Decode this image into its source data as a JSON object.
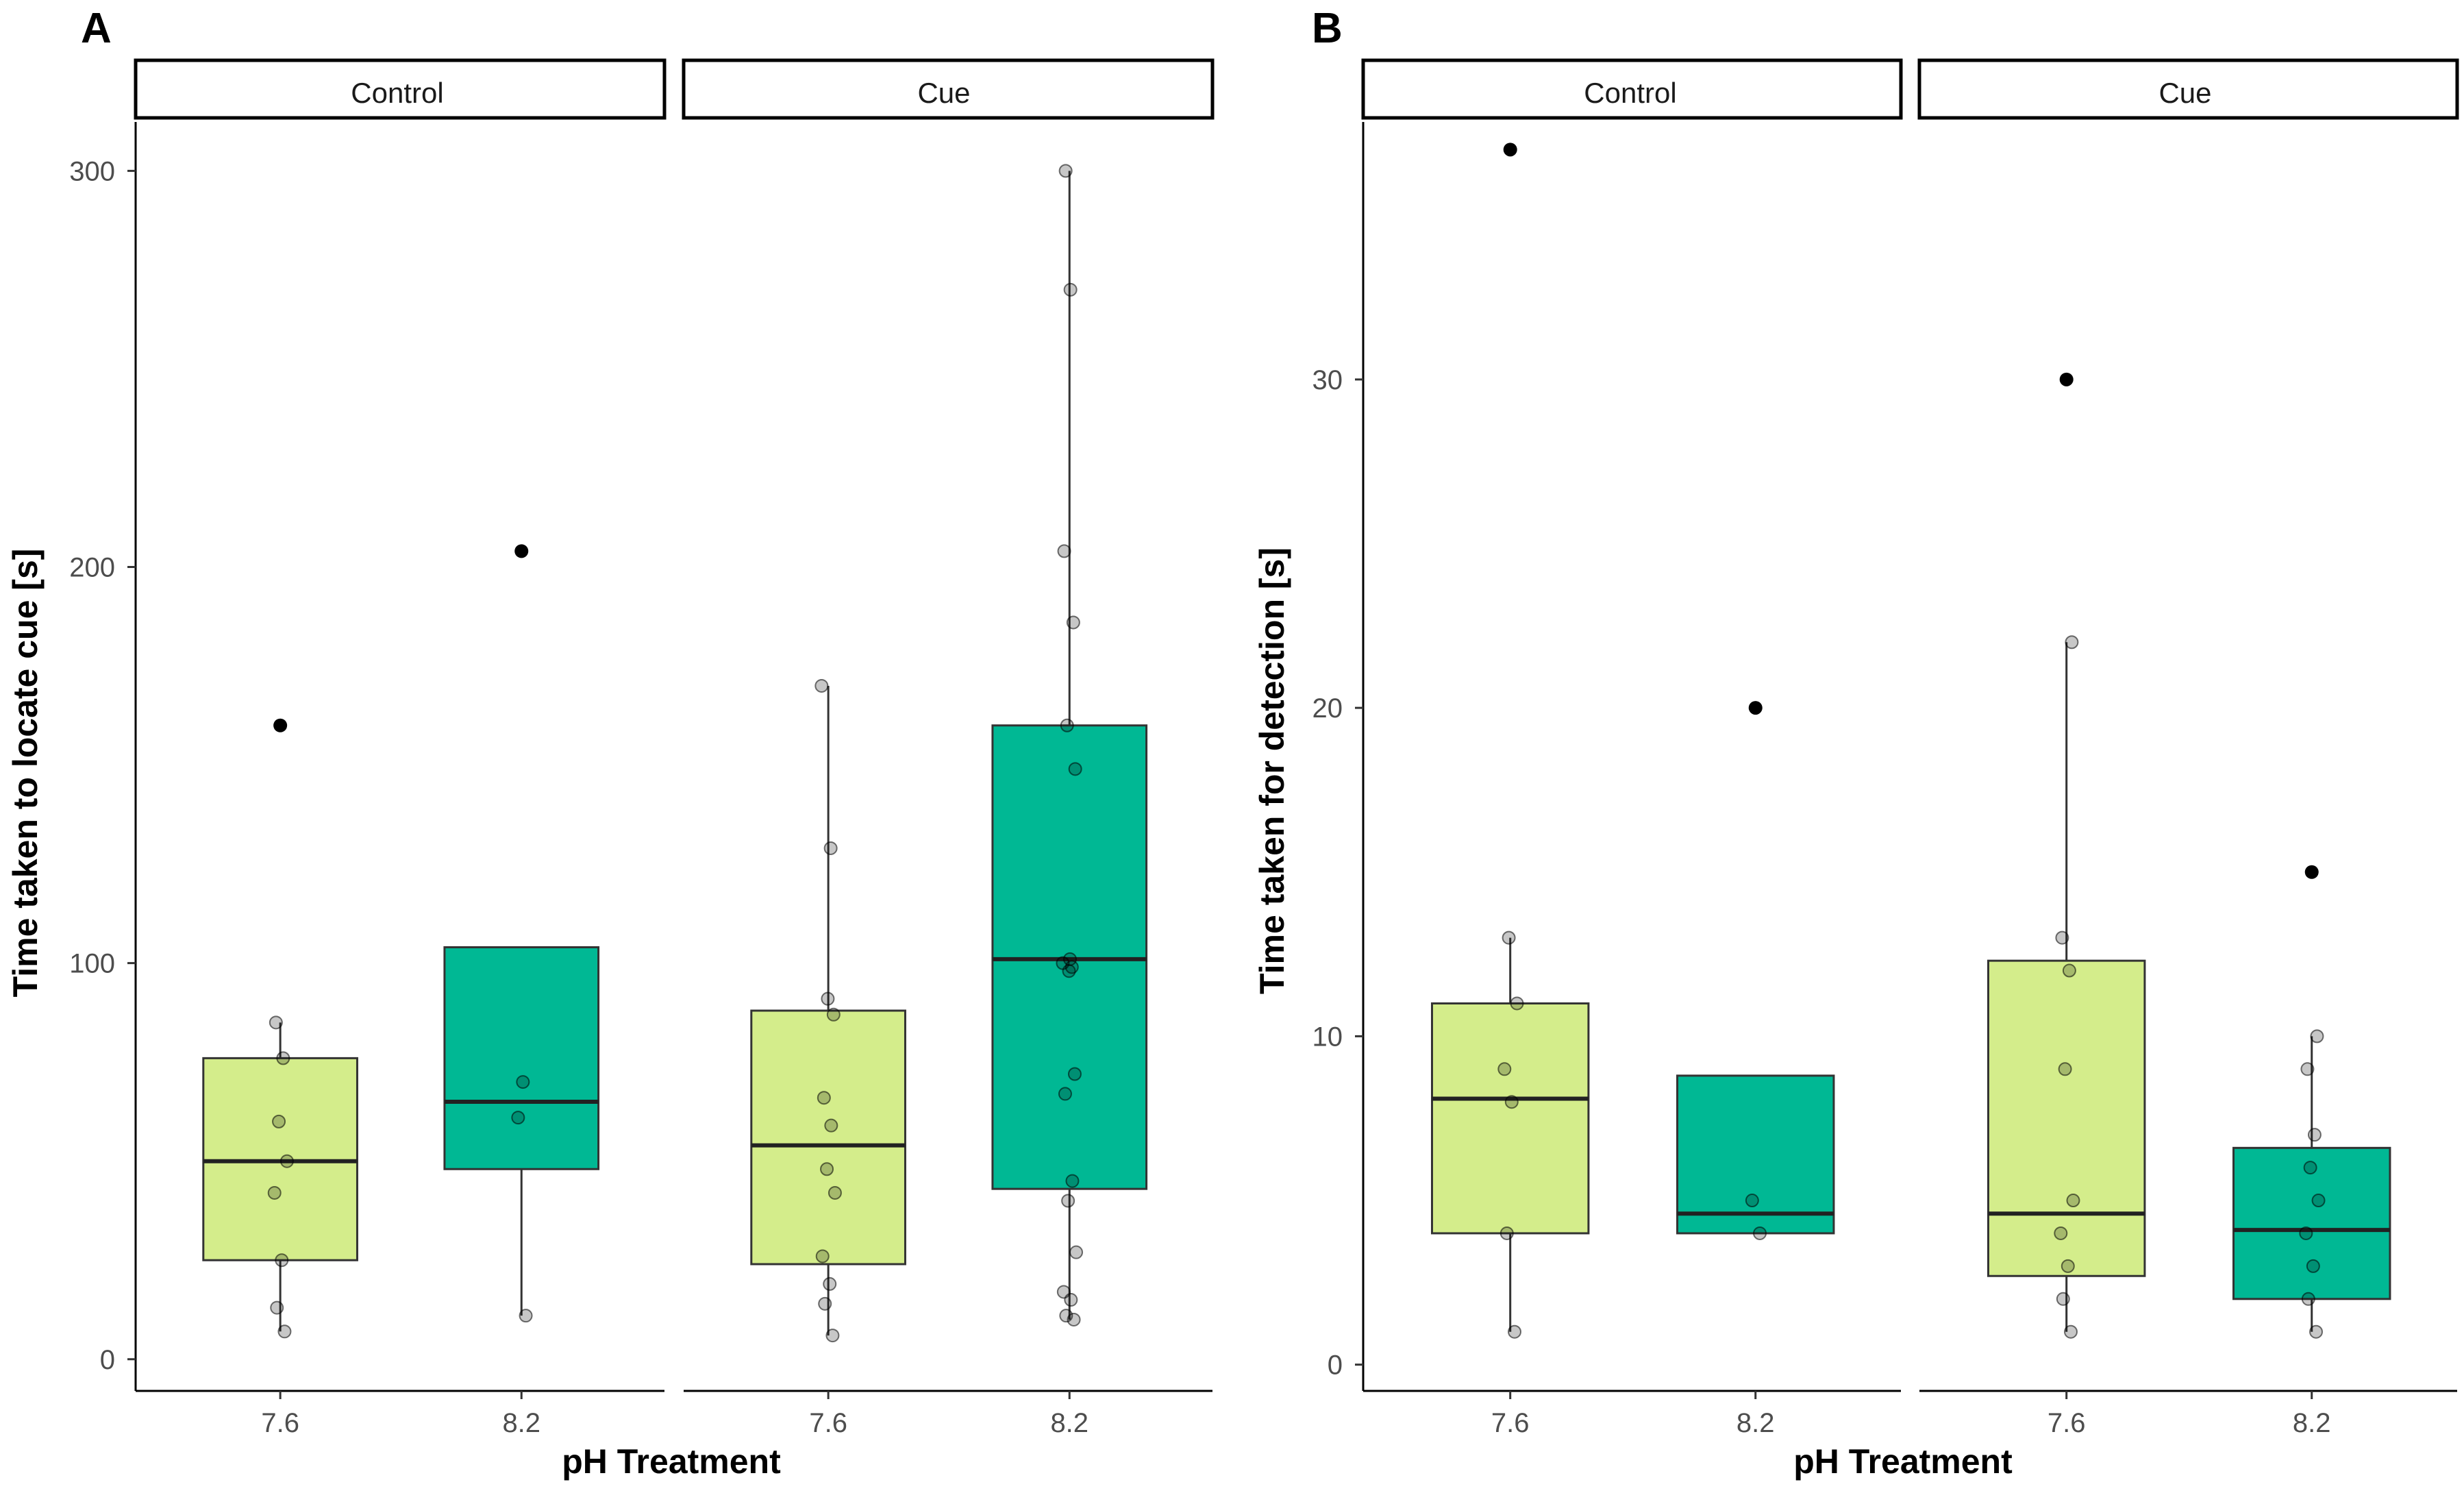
{
  "colors": {
    "ph_7_6": "#d4ed8b",
    "ph_8_2": "#00b894",
    "outlier": "#000000",
    "axis": "#000000"
  },
  "chart_data": [
    {
      "panel": "A",
      "type": "boxplot",
      "facets": [
        "Control",
        "Cue"
      ],
      "categories": [
        "7.6",
        "8.2"
      ],
      "xlabel": "pH Treatment",
      "ylabel": "Time taken to locate cue [s]",
      "ylim": [
        -8,
        312
      ],
      "yticks": [
        0,
        100,
        200,
        300
      ],
      "boxes": [
        {
          "facet": "Control",
          "ph": "7.6",
          "q1": 25,
          "median": 50,
          "q3": 76,
          "lower": 7,
          "upper": 85,
          "outliers": [
            160
          ],
          "points": [
            7,
            13,
            25,
            42,
            50,
            60,
            76,
            85
          ]
        },
        {
          "facet": "Control",
          "ph": "8.2",
          "q1": 48,
          "median": 65,
          "q3": 104,
          "lower": 11,
          "upper": 104,
          "outliers": [
            204
          ],
          "points": [
            11,
            61,
            70
          ]
        },
        {
          "facet": "Cue",
          "ph": "7.6",
          "q1": 24,
          "median": 54,
          "q3": 88,
          "lower": 6,
          "upper": 170,
          "outliers": [],
          "points": [
            6,
            14,
            19,
            26,
            42,
            48,
            59,
            66,
            87,
            91,
            129,
            170
          ]
        },
        {
          "facet": "Cue",
          "ph": "8.2",
          "q1": 43,
          "median": 101,
          "q3": 160,
          "lower": 10,
          "upper": 300,
          "outliers": [],
          "points": [
            10,
            11,
            15,
            17,
            27,
            40,
            45,
            67,
            72,
            98,
            99,
            100,
            101,
            149,
            160,
            186,
            204,
            270,
            300
          ]
        }
      ]
    },
    {
      "panel": "B",
      "type": "boxplot",
      "facets": [
        "Control",
        "Cue"
      ],
      "categories": [
        "7.6",
        "8.2"
      ],
      "xlabel": "pH Treatment",
      "ylabel": "Time taken for detection [s]",
      "ylim": [
        -0.8,
        37.8
      ],
      "yticks": [
        0,
        10,
        20,
        30
      ],
      "boxes": [
        {
          "facet": "Control",
          "ph": "7.6",
          "q1": 4,
          "median": 8.1,
          "q3": 11,
          "lower": 1,
          "upper": 13,
          "outliers": [
            37
          ],
          "points": [
            1,
            4,
            8,
            9,
            11,
            13
          ]
        },
        {
          "facet": "Control",
          "ph": "8.2",
          "q1": 4,
          "median": 4.6,
          "q3": 8.8,
          "lower": 4,
          "upper": 8.8,
          "outliers": [
            20
          ],
          "points": [
            4,
            5
          ]
        },
        {
          "facet": "Cue",
          "ph": "7.6",
          "q1": 2.7,
          "median": 4.6,
          "q3": 12.3,
          "lower": 1,
          "upper": 22,
          "outliers": [
            30
          ],
          "points": [
            1,
            2,
            3,
            4,
            5,
            9,
            12,
            13,
            22
          ]
        },
        {
          "facet": "Cue",
          "ph": "8.2",
          "q1": 2,
          "median": 4.1,
          "q3": 6.6,
          "lower": 1,
          "upper": 10,
          "outliers": [
            15
          ],
          "points": [
            1,
            2,
            3,
            4,
            5,
            6,
            7,
            9,
            10
          ]
        }
      ]
    }
  ]
}
